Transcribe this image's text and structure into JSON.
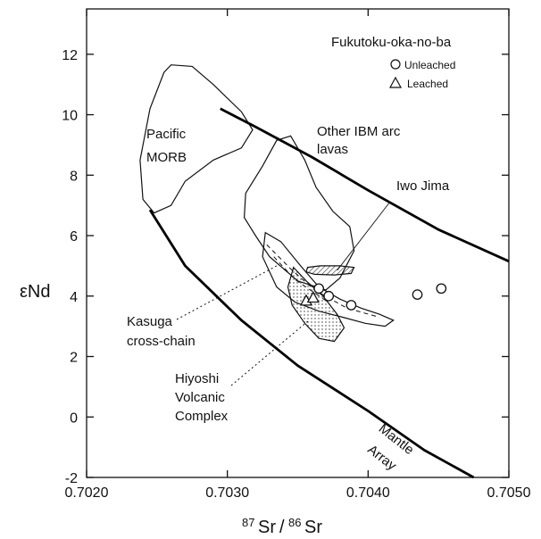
{
  "chart_data": {
    "type": "scatter",
    "title": "",
    "xlabel": "87Sr/86Sr",
    "xlabel_parts": {
      "mass1": "87",
      "el1": "Sr",
      "sep": "/",
      "mass2": "86",
      "el2": "Sr"
    },
    "ylabel": "εNd",
    "xlim": [
      0.702,
      0.705
    ],
    "ylim": [
      -2,
      13.5
    ],
    "x_ticks": [
      {
        "value": 0.702,
        "label": "0.7020"
      },
      {
        "value": 0.703,
        "label": "0.7030"
      },
      {
        "value": 0.704,
        "label": "0.7040"
      },
      {
        "value": 0.705,
        "label": "0.7050"
      }
    ],
    "y_ticks": [
      {
        "value": -2,
        "label": "-2"
      },
      {
        "value": 0,
        "label": "0"
      },
      {
        "value": 2,
        "label": "2"
      },
      {
        "value": 4,
        "label": "4"
      },
      {
        "value": 6,
        "label": "6"
      },
      {
        "value": 8,
        "label": "8"
      },
      {
        "value": 10,
        "label": "10"
      },
      {
        "value": 12,
        "label": "12"
      }
    ],
    "legend": {
      "title": "Fukutoku-oka-no-ba",
      "placement": "top-right",
      "entries": [
        {
          "label": "Unleached",
          "marker": "circle"
        },
        {
          "label": "Leached",
          "marker": "triangle"
        }
      ]
    },
    "series": [
      {
        "name": "Unleached",
        "marker": "circle",
        "points": [
          {
            "x": 0.70365,
            "y": 4.25
          },
          {
            "x": 0.70372,
            "y": 4.0
          },
          {
            "x": 0.70388,
            "y": 3.7
          },
          {
            "x": 0.70435,
            "y": 4.05
          },
          {
            "x": 0.70452,
            "y": 4.25
          }
        ]
      },
      {
        "name": "Leached",
        "marker": "triangle",
        "points": [
          {
            "x": 0.70356,
            "y": 3.85
          },
          {
            "x": 0.70361,
            "y": 3.95
          }
        ]
      }
    ],
    "mantle_array": {
      "label_words": [
        "Mantle",
        "Array"
      ],
      "upper": [
        [
          0.70295,
          10.2
        ],
        [
          0.7032,
          9.6
        ],
        [
          0.7036,
          8.6
        ],
        [
          0.704,
          7.5
        ],
        [
          0.7045,
          6.2
        ],
        [
          0.705,
          5.15
        ]
      ],
      "lower": [
        [
          0.70245,
          6.85
        ],
        [
          0.7027,
          5.0
        ],
        [
          0.7031,
          3.2
        ],
        [
          0.7035,
          1.7
        ],
        [
          0.704,
          0.2
        ],
        [
          0.7044,
          -1.1
        ],
        [
          0.70475,
          -2.0
        ]
      ]
    },
    "fields": [
      {
        "name": "Pacific MORB",
        "label_lines": [
          "Pacific",
          "MORB"
        ],
        "style": "outline",
        "path": [
          [
            0.70255,
            11.4
          ],
          [
            0.7026,
            11.65
          ],
          [
            0.70275,
            11.6
          ],
          [
            0.7029,
            11.0
          ],
          [
            0.7031,
            10.1
          ],
          [
            0.70318,
            9.5
          ],
          [
            0.7031,
            8.9
          ],
          [
            0.7029,
            8.5
          ],
          [
            0.7027,
            7.8
          ],
          [
            0.7026,
            7.0
          ],
          [
            0.70248,
            6.75
          ],
          [
            0.7024,
            7.2
          ],
          [
            0.70238,
            8.5
          ],
          [
            0.70245,
            10.2
          ],
          [
            0.70255,
            11.4
          ]
        ]
      },
      {
        "name": "Other IBM arc lavas",
        "label_lines": [
          "Other IBM arc",
          "lavas"
        ],
        "style": "outline",
        "path": [
          [
            0.70345,
            9.3
          ],
          [
            0.70335,
            9.15
          ],
          [
            0.70325,
            8.3
          ],
          [
            0.70313,
            7.4
          ],
          [
            0.70312,
            6.6
          ],
          [
            0.7032,
            6.0
          ],
          [
            0.7033,
            5.3
          ],
          [
            0.7035,
            4.5
          ],
          [
            0.7037,
            4.2
          ],
          [
            0.7038,
            4.6
          ],
          [
            0.7039,
            5.5
          ],
          [
            0.70387,
            6.3
          ],
          [
            0.70375,
            6.8
          ],
          [
            0.70363,
            7.6
          ],
          [
            0.70355,
            8.5
          ],
          [
            0.70345,
            9.3
          ]
        ]
      },
      {
        "name": "Kasuga cross-chain",
        "label_lines": [
          "Kasuga",
          "cross-chain"
        ],
        "style": "dashed",
        "path": [
          [
            0.70327,
            6.1
          ],
          [
            0.70338,
            5.8
          ],
          [
            0.70352,
            5.0
          ],
          [
            0.70365,
            4.3
          ],
          [
            0.7038,
            3.9
          ],
          [
            0.70395,
            3.6
          ],
          [
            0.70408,
            3.4
          ],
          [
            0.70418,
            3.2
          ],
          [
            0.70412,
            3.0
          ],
          [
            0.70398,
            3.1
          ],
          [
            0.70382,
            3.3
          ],
          [
            0.70365,
            3.5
          ],
          [
            0.70348,
            3.8
          ],
          [
            0.70335,
            4.3
          ],
          [
            0.70325,
            5.3
          ],
          [
            0.70327,
            6.1
          ]
        ]
      },
      {
        "name": "Hiyoshi Volcanic Complex",
        "label_lines": [
          "Hiyoshi",
          "Volcanic",
          "Complex"
        ],
        "style": "dotted",
        "path": [
          [
            0.70347,
            4.95
          ],
          [
            0.70356,
            4.5
          ],
          [
            0.70368,
            4.0
          ],
          [
            0.70378,
            3.4
          ],
          [
            0.70383,
            2.95
          ],
          [
            0.70376,
            2.5
          ],
          [
            0.70365,
            2.6
          ],
          [
            0.70355,
            3.1
          ],
          [
            0.70346,
            3.7
          ],
          [
            0.70343,
            4.3
          ],
          [
            0.70347,
            4.95
          ]
        ]
      },
      {
        "name": "Iwo Jima",
        "label_lines": [
          "Iwo  Jima"
        ],
        "style": "hatched",
        "path": [
          [
            0.70357,
            4.95
          ],
          [
            0.70366,
            5.0
          ],
          [
            0.7038,
            5.0
          ],
          [
            0.7039,
            4.95
          ],
          [
            0.70388,
            4.75
          ],
          [
            0.70376,
            4.7
          ],
          [
            0.70362,
            4.72
          ],
          [
            0.70356,
            4.8
          ],
          [
            0.70357,
            4.95
          ]
        ]
      }
    ]
  }
}
